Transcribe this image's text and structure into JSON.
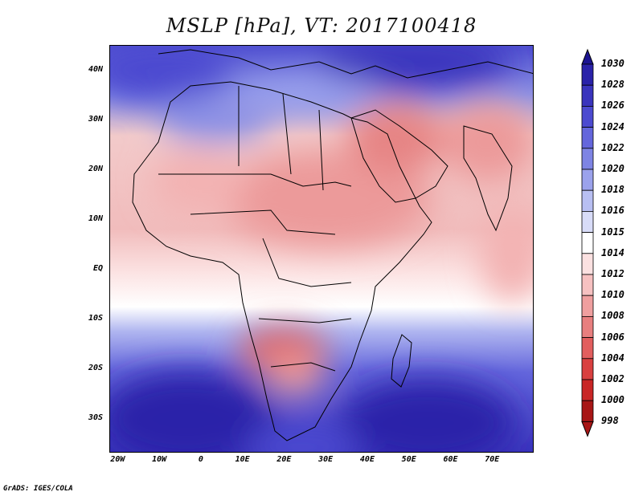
{
  "title": "MSLP [hPa], VT: 2017100418",
  "credit": "GrADS: IGES/COLA",
  "chart_data": {
    "type": "heatmap",
    "variable": "MSLP",
    "units": "hPa",
    "valid_time": "2017100418",
    "lat_range": [
      -37,
      45
    ],
    "lon_range": [
      -22,
      80
    ],
    "lat_ticks": [
      {
        "value": 40,
        "label": "40N"
      },
      {
        "value": 30,
        "label": "30N"
      },
      {
        "value": 20,
        "label": "20N"
      },
      {
        "value": 10,
        "label": "10N"
      },
      {
        "value": 0,
        "label": "EQ"
      },
      {
        "value": -10,
        "label": "10S"
      },
      {
        "value": -20,
        "label": "20S"
      },
      {
        "value": -30,
        "label": "30S"
      }
    ],
    "lon_ticks": [
      {
        "value": -20,
        "label": "20W"
      },
      {
        "value": -10,
        "label": "10W"
      },
      {
        "value": 0,
        "label": "0"
      },
      {
        "value": 10,
        "label": "10E"
      },
      {
        "value": 20,
        "label": "20E"
      },
      {
        "value": 30,
        "label": "30E"
      },
      {
        "value": 40,
        "label": "40E"
      },
      {
        "value": 50,
        "label": "50E"
      },
      {
        "value": 60,
        "label": "60E"
      },
      {
        "value": 70,
        "label": "70E"
      }
    ],
    "colorbar": {
      "levels": [
        1030,
        1028,
        1026,
        1024,
        1022,
        1020,
        1018,
        1016,
        1015,
        1014,
        1012,
        1010,
        1008,
        1006,
        1004,
        1002,
        1000,
        998
      ],
      "colors": [
        "#1c1491",
        "#2a22a9",
        "#3a34bd",
        "#4c4ad0",
        "#6466dc",
        "#7e84e4",
        "#9ba2ec",
        "#b8bff2",
        "#d8dcf8",
        "#ffffff",
        "#fbe1e1",
        "#f6c1c1",
        "#ef9f9f",
        "#e87f7f",
        "#e25e5e",
        "#d94040",
        "#c92626",
        "#a81616"
      ]
    },
    "pressure_centers": [
      {
        "type": "high",
        "lat": -31,
        "lon": -5,
        "value": 1028
      },
      {
        "type": "high",
        "lat": -33,
        "lon": 58,
        "value": 1028
      },
      {
        "type": "high",
        "lat": 42,
        "lon": 45,
        "value": 1024
      },
      {
        "type": "low",
        "lat": -16,
        "lon": 22,
        "value": 1008
      },
      {
        "type": "low",
        "lat": 27,
        "lon": 48,
        "value": 1008
      }
    ]
  }
}
